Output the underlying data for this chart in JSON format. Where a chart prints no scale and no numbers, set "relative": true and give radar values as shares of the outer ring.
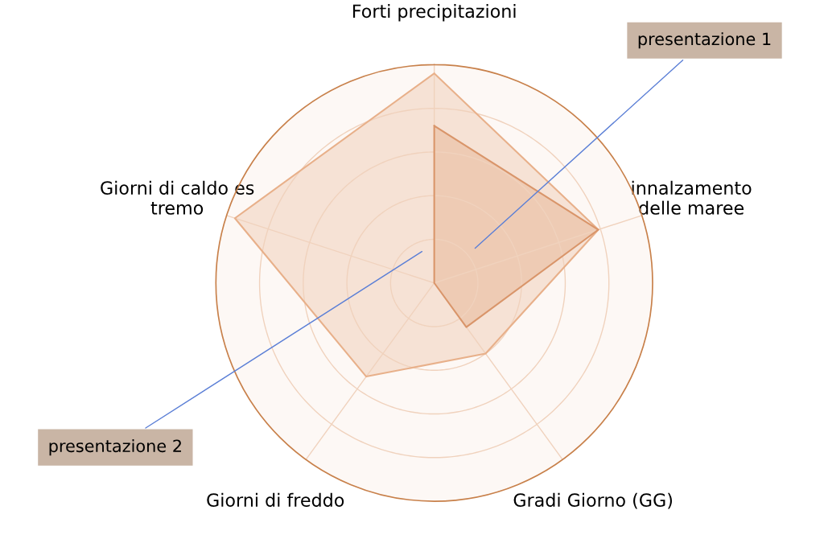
{
  "chart_data": {
    "type": "radar",
    "relative": true,
    "categories": [
      "Forti precipitazioni",
      "innalzamento\ndelle maree",
      "Gradi Giorno (GG)",
      "Giorni di freddo",
      "Giorni di caldo es\ntremo"
    ],
    "series": [
      {
        "name": "presentazione 2",
        "color": "#e8b08a",
        "values": [
          0.96,
          0.79,
          0.4,
          0.53,
          0.96
        ]
      },
      {
        "name": "presentazione 1",
        "color": "#d9956a",
        "values": [
          0.72,
          0.79,
          0.25,
          0,
          0
        ]
      }
    ],
    "grid": true,
    "legend": false
  }
}
